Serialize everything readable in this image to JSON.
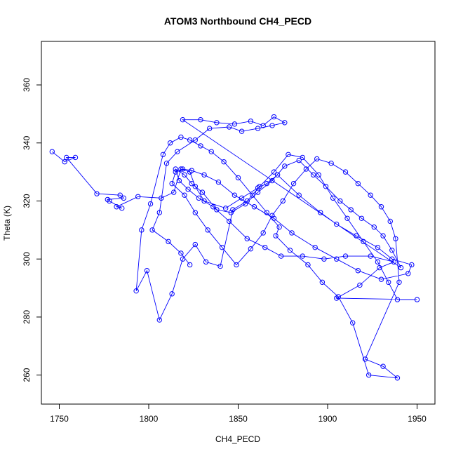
{
  "chart_data": {
    "type": "line",
    "title": "ATOM3 Northbound CH4_PECD",
    "xlabel": "CH4_PECD",
    "ylabel": "Theta (K)",
    "xlim": [
      1740,
      1960
    ],
    "ylim": [
      250,
      375
    ],
    "xticks": [
      "1750",
      "1800",
      "1850",
      "1900",
      "1950"
    ],
    "yticks": [
      "260",
      "280",
      "300",
      "320",
      "340",
      "360"
    ],
    "grid": false,
    "markers": "open-circle",
    "line_color": "#0000ff",
    "series": [
      {
        "x": [
          1746,
          1753,
          1759,
          1754,
          1771,
          1784,
          1786,
          1777,
          1778,
          1785,
          1782,
          1794,
          1807,
          1814,
          1818,
          1823,
          1826,
          1831,
          1843,
          1852,
          1861,
          1866,
          1872,
          1884,
          1896,
          1905,
          1916,
          1928,
          1936,
          1947,
          1945,
          1930,
          1917,
          1905,
          1893,
          1880,
          1870,
          1859,
          1848,
          1839,
          1831,
          1824,
          1819,
          1815,
          1813,
          1820,
          1826,
          1833,
          1841,
          1849,
          1857,
          1864,
          1869,
          1875,
          1881,
          1888,
          1894,
          1902,
          1910,
          1917,
          1924,
          1930,
          1935,
          1938,
          1940,
          1921,
          1931,
          1939,
          1923,
          1914,
          1906,
          1897,
          1889,
          1879,
          1871,
          1873,
          1866,
          1858,
          1850,
          1842,
          1835,
          1829,
          1823,
          1818,
          1812,
          1808,
          1801,
          1796,
          1793,
          1799,
          1806,
          1813,
          1819,
          1826,
          1832,
          1840,
          1847,
          1855,
          1862,
          1870,
          1878,
          1886,
          1895,
          1903,
          1911,
          1920,
          1928,
          1934,
          1939,
          1950,
          1905,
          1918,
          1929,
          1937,
          1924,
          1910,
          1898,
          1886,
          1874,
          1865,
          1855,
          1845,
          1836,
          1828,
          1822,
          1817,
          1815,
          1820,
          1824,
          1830,
          1838,
          1846,
          1854,
          1861,
          1869,
          1876,
          1884,
          1892,
          1899,
          1907,
          1913,
          1919,
          1926,
          1931,
          1936,
          1941,
          1819,
          1829,
          1838,
          1848,
          1857,
          1864,
          1870,
          1876,
          1869,
          1861,
          1852,
          1845,
          1834,
          1826,
          1816,
          1810,
          1806,
          1802,
          1811,
          1818,
          1823
        ],
        "y": [
          337,
          333.5,
          335,
          335,
          322.5,
          322,
          321,
          320.5,
          320,
          317.5,
          318,
          321.5,
          321,
          323,
          331,
          330,
          325,
          320,
          317.5,
          321,
          324.5,
          326,
          329,
          322,
          316,
          312,
          308,
          304,
          300,
          298,
          295,
          293,
          296,
          300,
          304,
          309,
          314,
          318,
          322,
          326.5,
          329,
          330.5,
          331,
          330,
          326,
          322,
          316,
          310,
          304,
          298,
          303.5,
          309,
          315,
          320,
          326,
          331,
          334.5,
          333,
          330,
          326,
          322,
          318,
          313,
          307,
          292,
          265.5,
          263,
          259,
          260,
          278,
          287,
          292,
          298,
          303,
          308,
          311,
          316,
          322,
          328,
          333.5,
          337,
          339,
          341,
          342,
          340,
          336,
          319,
          310,
          289,
          296,
          279,
          288,
          300,
          305,
          299,
          297.5,
          317,
          320,
          325,
          330,
          336,
          335,
          329,
          321,
          314,
          306,
          299,
          292,
          286,
          286,
          286.5,
          291,
          297,
          299,
          301,
          301,
          300,
          301,
          301,
          304,
          307,
          313,
          318,
          321,
          324,
          327,
          331,
          329,
          326,
          323,
          317,
          316,
          319,
          323,
          327,
          332,
          334,
          329,
          325,
          320,
          317,
          314,
          311,
          308,
          303,
          297,
          348,
          348,
          347,
          346.5,
          347.5,
          346,
          349,
          347,
          346,
          345,
          344,
          345.5,
          345,
          341,
          337,
          333,
          316,
          310,
          306,
          302,
          298
        ]
      }
    ]
  }
}
